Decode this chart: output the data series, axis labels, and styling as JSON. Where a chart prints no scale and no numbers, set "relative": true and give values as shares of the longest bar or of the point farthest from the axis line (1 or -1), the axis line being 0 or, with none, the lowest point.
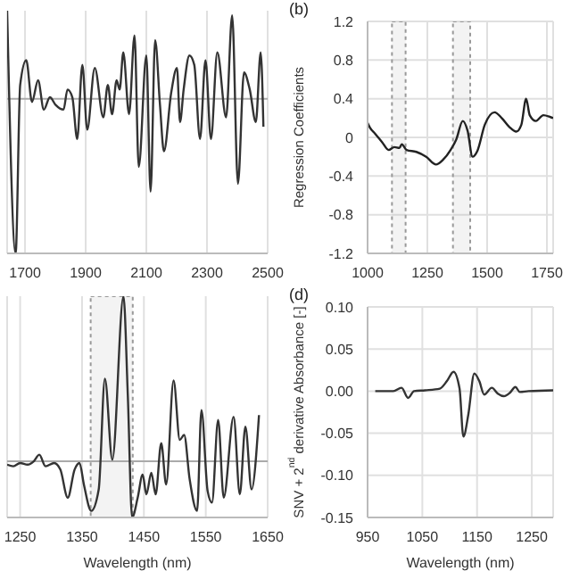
{
  "chart_data": [
    {
      "type": "line",
      "relative": true,
      "grid": "x",
      "marker": "none",
      "xlim": [
        1641,
        2500
      ],
      "xticks": [
        1700,
        1900,
        2100,
        2300,
        2500
      ],
      "x": [
        1641,
        1669,
        1684,
        1704,
        1723,
        1743,
        1762,
        1782,
        1801,
        1827,
        1840,
        1856,
        1872,
        1889,
        1905,
        1930,
        1958,
        1973,
        1987,
        2002,
        2012,
        2024,
        2043,
        2061,
        2075,
        2100,
        2114,
        2129,
        2145,
        2158,
        2182,
        2201,
        2211,
        2223,
        2242,
        2258,
        2277,
        2295,
        2313,
        2334,
        2363,
        2383,
        2402,
        2422,
        2441,
        2461,
        2477,
        2486
      ],
      "series": [
        {
          "color": "#333333",
          "values": [
            0.57,
            -1.0,
            0.09,
            0.25,
            -0.02,
            0.12,
            -0.07,
            0.01,
            -0.04,
            -0.07,
            0.06,
            0.01,
            -0.26,
            0.22,
            -0.2,
            0.2,
            -0.12,
            0.09,
            -0.1,
            0.12,
            0.06,
            0.3,
            -0.1,
            0.41,
            -0.44,
            0.28,
            -0.6,
            0.38,
            -0.04,
            -0.34,
            0.04,
            0.2,
            -0.15,
            0.06,
            0.28,
            0.22,
            -0.26,
            0.25,
            -0.26,
            0.3,
            -0.12,
            0.54,
            -0.55,
            0.17,
            0.06,
            -0.15,
            0.3,
            -0.18
          ]
        }
      ]
    },
    {
      "type": "line",
      "title": "(b)",
      "ylabel": "Regression Coefficients",
      "grid": true,
      "marker": "none",
      "xlim": [
        1000,
        1776
      ],
      "xticks": [
        1000,
        1250,
        1500,
        1750
      ],
      "ylim": [
        -1.2,
        1.2
      ],
      "yticks": [
        -1.2,
        -0.8,
        -0.4,
        0,
        0.4,
        0.8,
        1.2
      ],
      "bands": [
        {
          "axis": "x",
          "from": 1102,
          "to": 1159,
          "color": "#999999"
        },
        {
          "axis": "x",
          "from": 1357,
          "to": 1429,
          "color": "#999999"
        }
      ],
      "x": [
        1000,
        1010,
        1031,
        1061,
        1088,
        1112,
        1133,
        1143,
        1163,
        1204,
        1245,
        1286,
        1316,
        1347,
        1371,
        1398,
        1418,
        1439,
        1459,
        1490,
        1531,
        1561,
        1592,
        1622,
        1643,
        1663,
        1678,
        1704,
        1735,
        1765,
        1776
      ],
      "series": [
        {
          "color": "#222222",
          "values": [
            0.15,
            0.1,
            0.04,
            -0.05,
            -0.13,
            -0.1,
            -0.11,
            -0.07,
            -0.13,
            -0.15,
            -0.2,
            -0.28,
            -0.23,
            -0.13,
            -0.02,
            0.17,
            0.07,
            -0.2,
            -0.14,
            0.13,
            0.26,
            0.2,
            0.11,
            0.06,
            0.13,
            0.4,
            0.23,
            0.17,
            0.23,
            0.21,
            0.2
          ]
        }
      ]
    },
    {
      "type": "line",
      "relative": true,
      "xlabel": "Wavelength (nm)",
      "grid": "x",
      "marker": "none",
      "xlim": [
        1229,
        1650
      ],
      "xticks": [
        1250,
        1350,
        1450,
        1550,
        1650
      ],
      "bands": [
        {
          "axis": "x",
          "from": 1364,
          "to": 1432,
          "color": "#999999"
        }
      ],
      "x": [
        1229,
        1239,
        1250,
        1262,
        1272,
        1281,
        1291,
        1305,
        1315,
        1327,
        1338,
        1346,
        1353,
        1365,
        1377,
        1387,
        1399,
        1417,
        1424,
        1431,
        1440,
        1448,
        1454,
        1462,
        1469,
        1478,
        1486,
        1498,
        1508,
        1515,
        1524,
        1536,
        1543,
        1553,
        1560,
        1570,
        1579,
        1595,
        1605,
        1614,
        1624,
        1636
      ],
      "series": [
        {
          "color": "#333333",
          "values": [
            -0.02,
            -0.03,
            -0.01,
            -0.02,
            0.0,
            0.04,
            -0.03,
            -0.01,
            -0.05,
            -0.22,
            -0.05,
            -0.01,
            -0.14,
            -0.3,
            -0.17,
            0.5,
            0.01,
            1.0,
            0.4,
            -0.34,
            -0.22,
            -0.08,
            -0.2,
            -0.07,
            -0.2,
            0.11,
            -0.14,
            0.49,
            0.13,
            0.16,
            -0.11,
            -0.3,
            0.31,
            -0.18,
            -0.25,
            0.25,
            -0.22,
            0.27,
            -0.2,
            0.21,
            -0.17,
            0.28
          ]
        }
      ]
    },
    {
      "type": "line",
      "title": "(d)",
      "xlabel": "Wavelength (nm)",
      "ylabel": "SNV + 2$^{nd}$ derivative Absorbance [-]",
      "grid": true,
      "marker": "none",
      "xlim": [
        950,
        1289
      ],
      "xticks": [
        950,
        1050,
        1150,
        1250
      ],
      "ylim": [
        -0.15,
        0.1
      ],
      "yticks": [
        {
          "value": -0.15,
          "label": "-0.15"
        },
        {
          "value": -0.1,
          "label": "-0.10"
        },
        -0.05,
        {
          "value": 0,
          "label": "0.00"
        },
        0.05,
        {
          "value": 0.1,
          "label": "0.10"
        }
      ],
      "x": [
        964,
        997,
        1012,
        1024,
        1035,
        1055,
        1082,
        1095,
        1107,
        1118,
        1125,
        1134,
        1145,
        1154,
        1163,
        1177,
        1188,
        1199,
        1210,
        1220,
        1228,
        1244,
        1289
      ],
      "series": [
        {
          "color": "#333333",
          "values": [
            0.0,
            0.0,
            0.004,
            -0.008,
            0.0,
            0.001,
            0.003,
            0.012,
            0.023,
            0.003,
            -0.054,
            -0.028,
            0.021,
            0.012,
            -0.004,
            0.004,
            -0.003,
            -0.006,
            -0.002,
            0.005,
            -0.001,
            0.0,
            0.001
          ]
        }
      ]
    }
  ]
}
